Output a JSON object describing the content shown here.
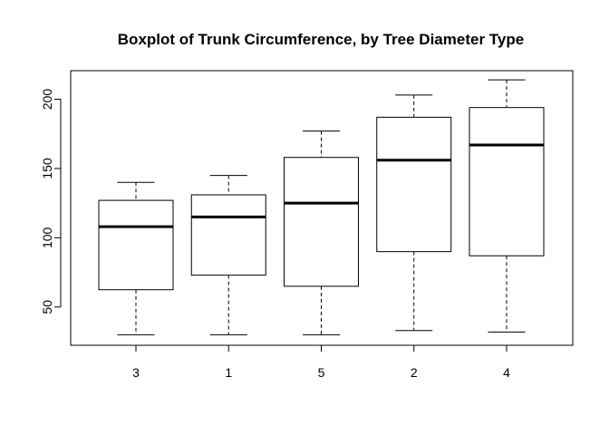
{
  "chart_data": {
    "type": "boxplot",
    "title": "Boxplot of Trunk Circumference, by Tree Diameter Type",
    "xlabel": "",
    "ylabel": "",
    "categories": [
      "3",
      "1",
      "5",
      "2",
      "4"
    ],
    "boxes": [
      {
        "category": "3",
        "min": 30,
        "q1": 62.5,
        "median": 108,
        "q3": 127,
        "max": 140
      },
      {
        "category": "1",
        "min": 30,
        "q1": 73,
        "median": 115,
        "q3": 131,
        "max": 145
      },
      {
        "category": "5",
        "min": 30,
        "q1": 65,
        "median": 125,
        "q3": 158,
        "max": 177
      },
      {
        "category": "2",
        "min": 33,
        "q1": 90,
        "median": 156,
        "q3": 187,
        "max": 203
      },
      {
        "category": "4",
        "min": 32,
        "q1": 87,
        "median": 167,
        "q3": 194,
        "max": 214
      }
    ],
    "yticks": [
      50,
      100,
      150,
      200
    ],
    "ylim": [
      22.4,
      220.6
    ],
    "grid": false,
    "legend": "none"
  }
}
